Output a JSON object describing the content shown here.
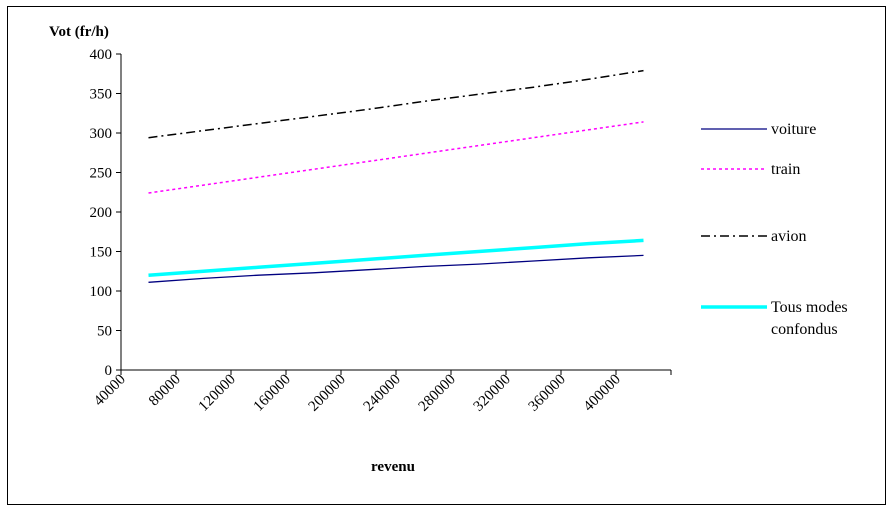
{
  "chart_data": {
    "type": "line",
    "title": "",
    "ylabel": "Vot (fr/h)",
    "xlabel": "revenu",
    "x": [
      60000,
      100000,
      140000,
      180000,
      220000,
      260000,
      300000,
      340000,
      380000,
      420000
    ],
    "xticks": [
      "40000",
      "80000",
      "120000",
      "160000",
      "200000",
      "240000",
      "280000",
      "320000",
      "360000",
      "400000"
    ],
    "xlim": [
      40000,
      440000
    ],
    "ylim": [
      0,
      400
    ],
    "yticks": [
      "0",
      "50",
      "100",
      "150",
      "200",
      "250",
      "300",
      "350",
      "400"
    ],
    "legend_position": "right",
    "grid": false,
    "series": [
      {
        "name": "voiture",
        "color": "#000080",
        "style": "solid",
        "values": [
          111,
          116,
          120,
          123,
          127,
          131,
          134,
          138,
          142,
          145
        ]
      },
      {
        "name": "train",
        "color": "#ff00ff",
        "style": "dotted",
        "values": [
          224,
          234,
          244,
          254,
          264,
          274,
          284,
          294,
          304,
          314
        ]
      },
      {
        "name": "avion",
        "color": "#000000",
        "style": "dashdot",
        "values": [
          294,
          303,
          312,
          321,
          330,
          340,
          349,
          358,
          368,
          379
        ]
      },
      {
        "name": "Tous modes confondus",
        "color": "#00ffff",
        "style": "thick",
        "values": [
          120,
          125,
          130,
          135,
          140,
          145,
          150,
          155,
          160,
          164
        ]
      }
    ]
  }
}
